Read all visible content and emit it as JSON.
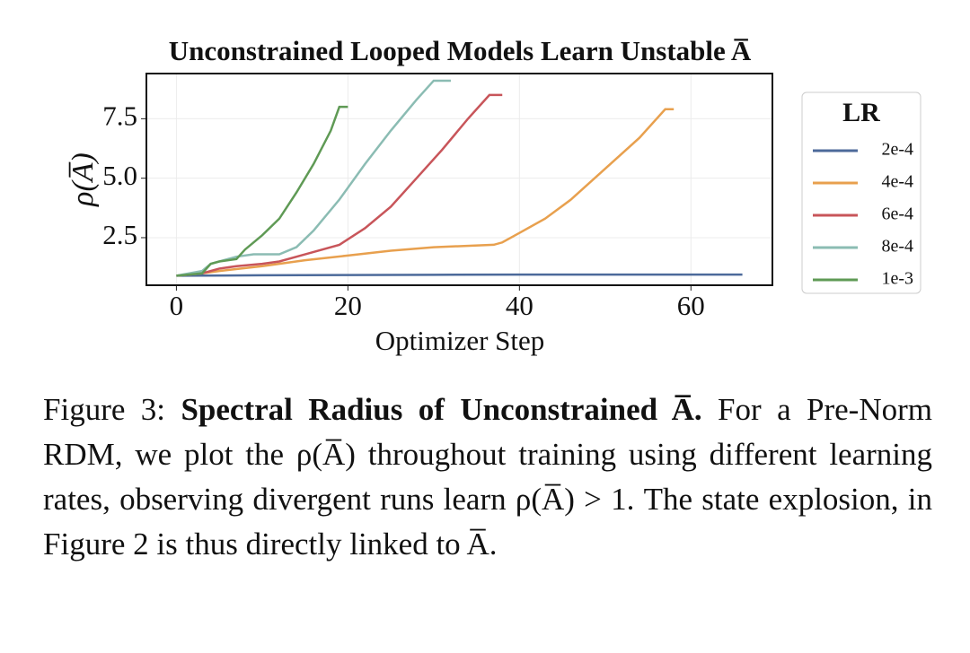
{
  "chart_data": {
    "type": "line",
    "title": "Unconstrained Looped Models Learn Unstable A̅",
    "x_label": "Optimizer Step",
    "y_label": "ρ(A̅)",
    "xlim": [
      -3.5,
      69.5
    ],
    "ylim": [
      0.5,
      9.4
    ],
    "xticks": [
      0,
      20,
      40,
      60
    ],
    "yticks": [
      2.5,
      {
        "value": 5,
        "label": "5.0"
      },
      7.5
    ],
    "grid": true,
    "legend_title": "LR",
    "legend_position": "outside-right",
    "series": [
      {
        "name": "2e-4",
        "color": "#4c6a9a",
        "x": [
          0,
          10,
          20,
          30,
          40,
          50,
          60,
          66
        ],
        "values": [
          0.9,
          0.92,
          0.93,
          0.94,
          0.95,
          0.95,
          0.95,
          0.95
        ]
      },
      {
        "name": "4e-4",
        "color": "#e8a04e",
        "x": [
          0,
          3,
          5,
          10,
          15,
          20,
          25,
          30,
          37,
          38,
          40,
          43,
          46,
          50,
          54,
          57,
          58
        ],
        "values": [
          0.9,
          1.0,
          1.1,
          1.3,
          1.55,
          1.75,
          1.95,
          2.1,
          2.2,
          2.3,
          2.7,
          3.3,
          4.1,
          5.4,
          6.7,
          7.9,
          7.9
        ]
      },
      {
        "name": "6e-4",
        "color": "#c8555a",
        "x": [
          0,
          3,
          5,
          7,
          10,
          12,
          15,
          19,
          22,
          25,
          28,
          31,
          34,
          36.5,
          38
        ],
        "values": [
          0.9,
          1.0,
          1.2,
          1.3,
          1.4,
          1.5,
          1.8,
          2.2,
          2.9,
          3.8,
          5.0,
          6.2,
          7.5,
          8.5,
          8.5
        ]
      },
      {
        "name": "8e-4",
        "color": "#8bbcb3",
        "x": [
          0,
          3,
          4,
          6,
          7,
          9,
          12,
          14,
          16,
          19,
          22,
          25,
          28,
          30,
          32
        ],
        "values": [
          0.9,
          1.1,
          1.4,
          1.6,
          1.7,
          1.8,
          1.8,
          2.1,
          2.8,
          4.1,
          5.6,
          7.0,
          8.3,
          9.1,
          9.1
        ]
      },
      {
        "name": "1e-3",
        "color": "#5f9a55",
        "x": [
          0,
          3,
          4,
          5,
          7,
          8,
          10,
          12,
          14,
          16,
          18,
          19,
          20
        ],
        "values": [
          0.9,
          1.0,
          1.4,
          1.5,
          1.6,
          2.0,
          2.6,
          3.3,
          4.4,
          5.6,
          7.0,
          8.0,
          8.0
        ]
      }
    ]
  },
  "caption": {
    "label": "Figure 3:",
    "bold": "Spectral Radius of Unconstrained A̅.",
    "text": "For a Pre-Norm RDM, we plot the ρ(A̅) throughout training using different learning rates, observing divergent runs learn ρ(A̅) > 1. The state explosion, in Figure 2 is thus directly linked to A̅."
  }
}
